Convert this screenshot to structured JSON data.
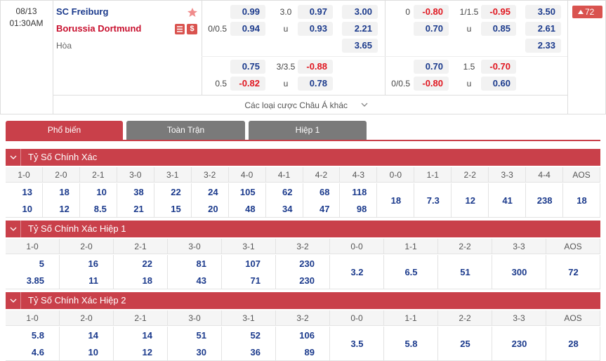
{
  "match": {
    "date": "08/13",
    "time": "01:30AM",
    "home": "SC Freiburg",
    "away": "Borussia Dortmund",
    "away_icon": "$",
    "draw": "Hòa",
    "badge": "72"
  },
  "markets": [
    {
      "rows": [
        {
          "home": "0.99",
          "line": "3.0",
          "over": "0.97",
          "x12": "3.00"
        },
        {
          "hcap": "0/0.5",
          "home": "0.94",
          "line": "u",
          "over": "0.93",
          "x12": "2.21"
        },
        {
          "x12": "3.65"
        },
        {
          "home": "0.75",
          "line": "3/3.5",
          "over": "-0.88"
        },
        {
          "hcap": "0.5",
          "home": "-0.82",
          "line": "u",
          "over": "0.78"
        }
      ]
    },
    {
      "rows": [
        {
          "hcap": "0",
          "home": "-0.80",
          "line": "1/1.5",
          "over": "-0.95",
          "x12": "3.50"
        },
        {
          "home": "0.70",
          "line": "u",
          "over": "0.85",
          "x12": "2.61"
        },
        {
          "x12": "2.33"
        },
        {
          "home": "0.70",
          "line": "1.5",
          "over": "-0.70"
        },
        {
          "hcap": "0/0.5",
          "home": "-0.80",
          "line": "u",
          "over": "0.60"
        }
      ]
    }
  ],
  "more_bets": "Các loại cược Châu Á khác",
  "tabs": [
    "Phổ biến",
    "Toàn Trận",
    "Hiệp 1"
  ],
  "sections": [
    {
      "title": "Tỷ Số Chính Xác",
      "cells": [
        {
          "score": "1-0",
          "odds": [
            "13",
            "10"
          ]
        },
        {
          "score": "2-0",
          "odds": [
            "18",
            "12"
          ]
        },
        {
          "score": "2-1",
          "odds": [
            "10",
            "8.5"
          ]
        },
        {
          "score": "3-0",
          "odds": [
            "38",
            "21"
          ]
        },
        {
          "score": "3-1",
          "odds": [
            "22",
            "15"
          ]
        },
        {
          "score": "3-2",
          "odds": [
            "24",
            "20"
          ]
        },
        {
          "score": "4-0",
          "odds": [
            "105",
            "48"
          ]
        },
        {
          "score": "4-1",
          "odds": [
            "62",
            "34"
          ]
        },
        {
          "score": "4-2",
          "odds": [
            "68",
            "47"
          ]
        },
        {
          "score": "4-3",
          "odds": [
            "118",
            "98"
          ]
        },
        {
          "score": "0-0",
          "odds": [
            "18"
          ]
        },
        {
          "score": "1-1",
          "odds": [
            "7.3"
          ]
        },
        {
          "score": "2-2",
          "odds": [
            "12"
          ]
        },
        {
          "score": "3-3",
          "odds": [
            "41"
          ]
        },
        {
          "score": "4-4",
          "odds": [
            "238"
          ]
        },
        {
          "score": "AOS",
          "odds": [
            "18"
          ]
        }
      ]
    },
    {
      "title": "Tỷ Số Chính Xác Hiệp 1",
      "cells": [
        {
          "score": "1-0",
          "odds": [
            "5",
            "3.85"
          ]
        },
        {
          "score": "2-0",
          "odds": [
            "16",
            "11"
          ]
        },
        {
          "score": "2-1",
          "odds": [
            "22",
            "18"
          ]
        },
        {
          "score": "3-0",
          "odds": [
            "81",
            "43"
          ]
        },
        {
          "score": "3-1",
          "odds": [
            "107",
            "71"
          ]
        },
        {
          "score": "3-2",
          "odds": [
            "230",
            "230"
          ]
        },
        {
          "score": "0-0",
          "odds": [
            "3.2"
          ]
        },
        {
          "score": "1-1",
          "odds": [
            "6.5"
          ]
        },
        {
          "score": "2-2",
          "odds": [
            "51"
          ]
        },
        {
          "score": "3-3",
          "odds": [
            "300"
          ]
        },
        {
          "score": "AOS",
          "odds": [
            "72"
          ]
        }
      ]
    },
    {
      "title": "Tỷ Số Chính Xác Hiệp 2",
      "cells": [
        {
          "score": "1-0",
          "odds": [
            "5.8",
            "4.6"
          ]
        },
        {
          "score": "2-0",
          "odds": [
            "14",
            "10"
          ]
        },
        {
          "score": "2-1",
          "odds": [
            "14",
            "12"
          ]
        },
        {
          "score": "3-0",
          "odds": [
            "51",
            "30"
          ]
        },
        {
          "score": "3-1",
          "odds": [
            "52",
            "36"
          ]
        },
        {
          "score": "3-2",
          "odds": [
            "106",
            "89"
          ]
        },
        {
          "score": "0-0",
          "odds": [
            "3.5"
          ]
        },
        {
          "score": "1-1",
          "odds": [
            "5.8"
          ]
        },
        {
          "score": "2-2",
          "odds": [
            "25"
          ]
        },
        {
          "score": "3-3",
          "odds": [
            "230"
          ]
        },
        {
          "score": "AOS",
          "odds": [
            "28"
          ]
        }
      ]
    }
  ]
}
